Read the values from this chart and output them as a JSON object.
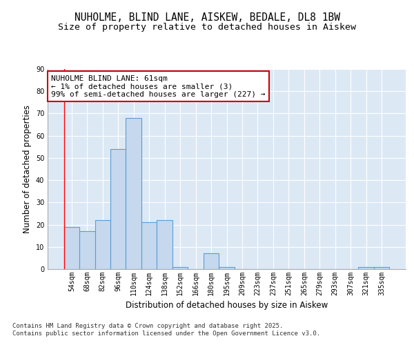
{
  "title_line1": "NUHOLME, BLIND LANE, AISKEW, BEDALE, DL8 1BW",
  "title_line2": "Size of property relative to detached houses in Aiskew",
  "xlabel": "Distribution of detached houses by size in Aiskew",
  "ylabel": "Number of detached properties",
  "categories": [
    "54sqm",
    "68sqm",
    "82sqm",
    "96sqm",
    "110sqm",
    "124sqm",
    "138sqm",
    "152sqm",
    "166sqm",
    "180sqm",
    "195sqm",
    "209sqm",
    "223sqm",
    "237sqm",
    "251sqm",
    "265sqm",
    "279sqm",
    "293sqm",
    "307sqm",
    "321sqm",
    "335sqm"
  ],
  "values": [
    19,
    17,
    22,
    54,
    68,
    21,
    22,
    1,
    0,
    7,
    1,
    0,
    0,
    0,
    0,
    0,
    0,
    0,
    0,
    1,
    1
  ],
  "bar_color": "#c5d8ed",
  "bar_edge_color": "#5b9bd5",
  "background_color": "#dce9f5",
  "grid_color": "#ffffff",
  "annotation_box_text": "NUHOLME BLIND LANE: 61sqm\n← 1% of detached houses are smaller (3)\n99% of semi-detached houses are larger (227) →",
  "annotation_box_edge_color": "#cc0000",
  "ylim": [
    0,
    90
  ],
  "yticks": [
    0,
    10,
    20,
    30,
    40,
    50,
    60,
    70,
    80,
    90
  ],
  "footer_text": "Contains HM Land Registry data © Crown copyright and database right 2025.\nContains public sector information licensed under the Open Government Licence v3.0.",
  "title_fontsize": 10.5,
  "subtitle_fontsize": 9.5,
  "ylabel_fontsize": 8.5,
  "xlabel_fontsize": 8.5,
  "tick_fontsize": 7,
  "footer_fontsize": 6.5,
  "ann_fontsize": 8,
  "fig_bg": "#ffffff"
}
